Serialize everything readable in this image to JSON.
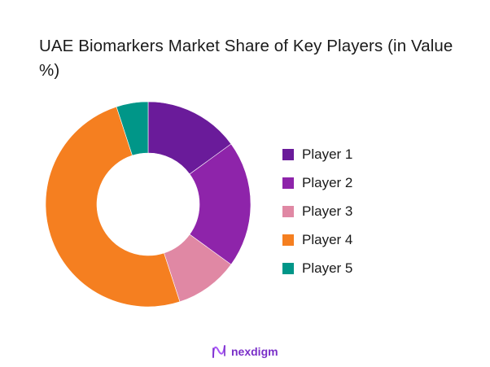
{
  "title": "UAE Biomarkers Market Share of Key Players (in Value %)",
  "brand": {
    "name": "nexdigm",
    "color": "#7a2fc8"
  },
  "chart_data": {
    "type": "pie",
    "variant": "donut",
    "title": "UAE Biomarkers Market Share of Key Players (in Value %)",
    "categories": [
      "Player 1",
      "Player 2",
      "Player 3",
      "Player 4",
      "Player 5"
    ],
    "values": [
      15,
      20,
      10,
      50,
      5
    ],
    "colors": [
      "#6a1b9a",
      "#8e24aa",
      "#e088a4",
      "#f57f20",
      "#009688"
    ],
    "legend_position": "right",
    "unit": "%"
  },
  "legend": {
    "items": [
      {
        "label": "Player 1",
        "color": "#6a1b9a"
      },
      {
        "label": "Player 2",
        "color": "#8e24aa"
      },
      {
        "label": "Player 3",
        "color": "#e088a4"
      },
      {
        "label": "Player 4",
        "color": "#f57f20"
      },
      {
        "label": "Player 5",
        "color": "#009688"
      }
    ]
  }
}
